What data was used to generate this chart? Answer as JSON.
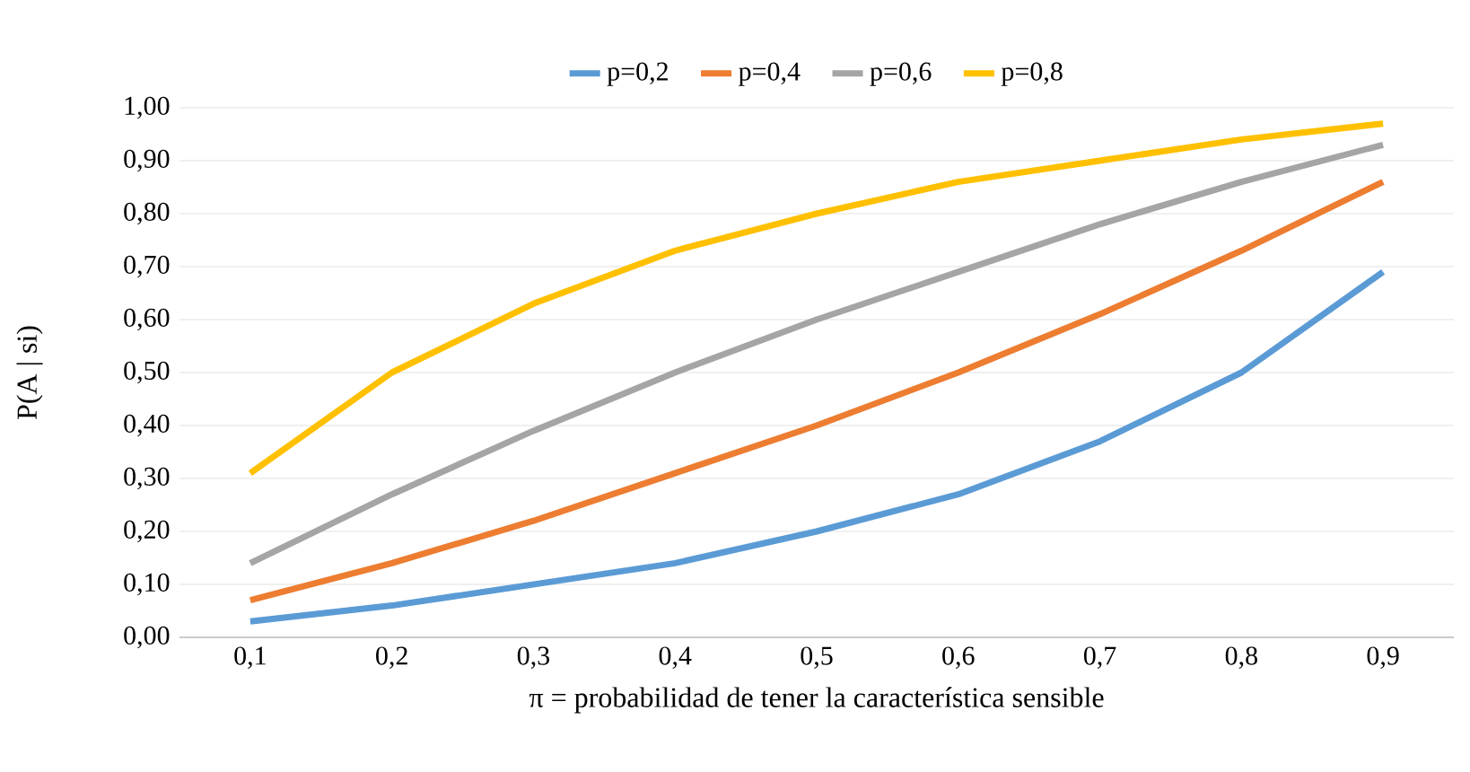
{
  "chart_data": {
    "type": "line",
    "xlabel": "π = probabilidad de tener la característica sensible",
    "ylabel": "P(A | si)",
    "categories": [
      "0,1",
      "0,2",
      "0,3",
      "0,4",
      "0,5",
      "0,6",
      "0,7",
      "0,8",
      "0,9"
    ],
    "series": [
      {
        "name": "p=0,2",
        "color": "#5b9bd5",
        "values": [
          0.03,
          0.06,
          0.1,
          0.14,
          0.2,
          0.27,
          0.37,
          0.5,
          0.69
        ]
      },
      {
        "name": "p=0,4",
        "color": "#ed7d31",
        "values": [
          0.07,
          0.14,
          0.22,
          0.31,
          0.4,
          0.5,
          0.61,
          0.73,
          0.86
        ]
      },
      {
        "name": "p=0,6",
        "color": "#a5a5a5",
        "values": [
          0.14,
          0.27,
          0.39,
          0.5,
          0.6,
          0.69,
          0.78,
          0.86,
          0.93
        ]
      },
      {
        "name": "p=0,8",
        "color": "#ffc000",
        "values": [
          0.31,
          0.5,
          0.63,
          0.73,
          0.8,
          0.86,
          0.9,
          0.94,
          0.97
        ]
      }
    ],
    "ylim": [
      0,
      1
    ],
    "yticks": [
      {
        "value": 0,
        "label": "0,00"
      },
      {
        "value": 0.1,
        "label": "0,10"
      },
      {
        "value": 0.2,
        "label": "0,20"
      },
      {
        "value": 0.3,
        "label": "0,30"
      },
      {
        "value": 0.4,
        "label": "0,40"
      },
      {
        "value": 0.5,
        "label": "0,50"
      },
      {
        "value": 0.6,
        "label": "0,60"
      },
      {
        "value": 0.7,
        "label": "0,70"
      },
      {
        "value": 0.8,
        "label": "0,80"
      },
      {
        "value": 0.9,
        "label": "0,90"
      },
      {
        "value": 1,
        "label": "1,00"
      }
    ],
    "grid": "y",
    "legend": "top",
    "marker": "none",
    "line_style": "solid"
  }
}
